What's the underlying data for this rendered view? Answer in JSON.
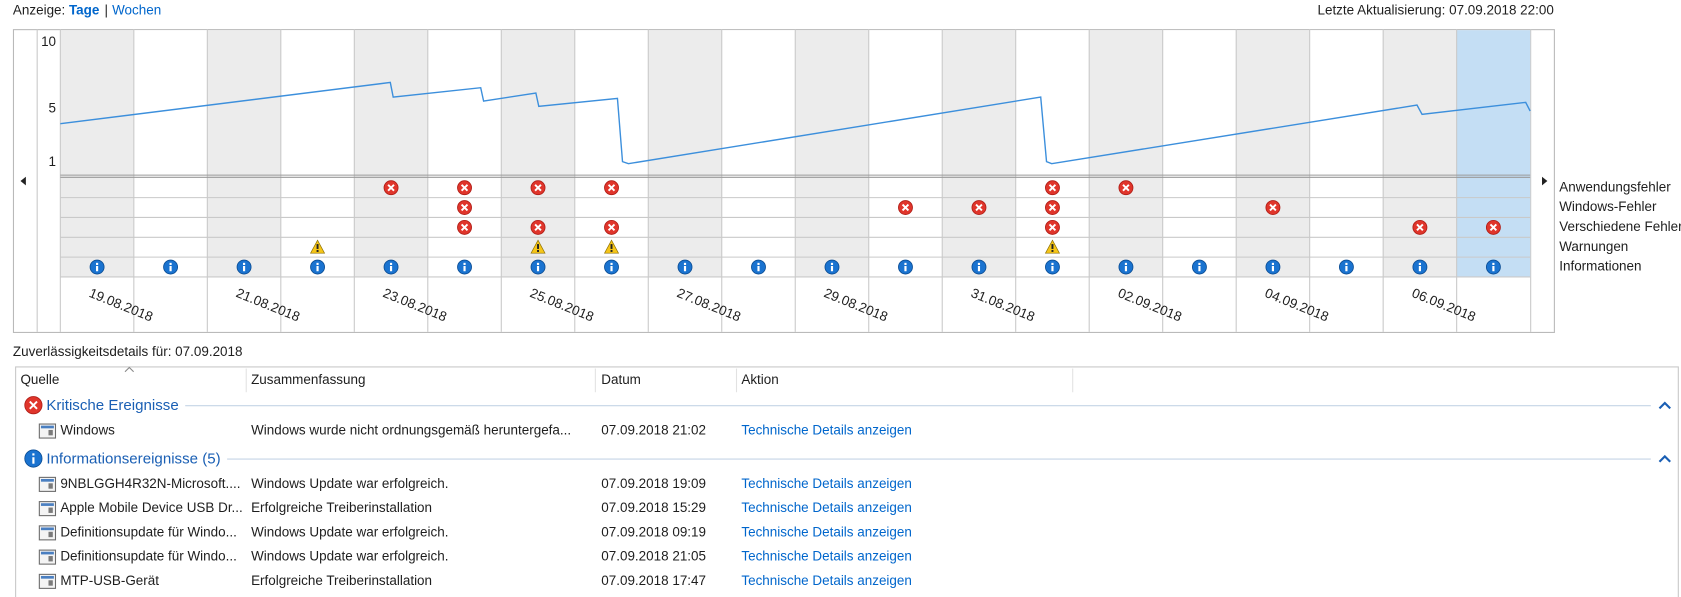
{
  "header": {
    "view_label": "Anzeige:",
    "view_days": "Tage",
    "separator": "|",
    "view_weeks": "Wochen",
    "last_update": "Letzte Aktualisierung: 07.09.2018 22:00"
  },
  "chart_data": {
    "type": "line",
    "categories": [
      "19.08.2018",
      null,
      "21.08.2018",
      null,
      "23.08.2018",
      null,
      "25.08.2018",
      null,
      "27.08.2018",
      null,
      "29.08.2018",
      null,
      "31.08.2018",
      null,
      "02.09.2018",
      null,
      "04.09.2018",
      null,
      "06.09.2018",
      null
    ],
    "selected_index": 19,
    "x": [
      0,
      4.49,
      4.53,
      5.72,
      5.76,
      6.47,
      6.51,
      7.58,
      7.65,
      7.73,
      13.34,
      13.42,
      13.49,
      18.46,
      18.53,
      19.94,
      20
    ],
    "values": [
      3.9,
      7.0,
      5.9,
      6.6,
      5.6,
      6.2,
      5.2,
      5.8,
      1.05,
      0.9,
      5.9,
      1.05,
      0.9,
      5.3,
      4.6,
      5.5,
      4.85
    ],
    "color": "#3c8fdc",
    "xlim": [
      0,
      20
    ],
    "ylim": [
      0,
      11
    ],
    "yticks": [
      1,
      5,
      10
    ],
    "events": [
      {
        "name": "Anwendungsfehler",
        "kind": "error",
        "columns": [
          4,
          5,
          6,
          7,
          13,
          14
        ]
      },
      {
        "name": "Windows-Fehler",
        "kind": "error",
        "columns": [
          5,
          11,
          12,
          13,
          16
        ]
      },
      {
        "name": "Verschiedene Fehler",
        "kind": "error",
        "columns": [
          5,
          6,
          7,
          13,
          18,
          19
        ]
      },
      {
        "name": "Warnungen",
        "kind": "warning",
        "columns": [
          3,
          6,
          7,
          13
        ]
      },
      {
        "name": "Informationen",
        "kind": "info",
        "columns": [
          0,
          1,
          2,
          3,
          4,
          5,
          6,
          7,
          8,
          9,
          10,
          11,
          12,
          13,
          14,
          15,
          16,
          17,
          18,
          19
        ]
      }
    ]
  },
  "details": {
    "title": "Zuverlässigkeitsdetails für: 07.09.2018"
  },
  "table": {
    "columns": [
      "Quelle",
      "Zusammenfassung",
      "Datum",
      "Aktion"
    ],
    "groups": [
      {
        "title": "Kritische Ereignisse",
        "kind": "error",
        "rows": [
          {
            "source": "Windows",
            "summary": "Windows wurde nicht ordnungsgemäß heruntergefa...",
            "date": "07.09.2018 21:02",
            "action": "Technische Details anzeigen"
          }
        ]
      },
      {
        "title": "Informationsereignisse (5)",
        "kind": "info",
        "rows": [
          {
            "source": "9NBLGGH4R32N-Microsoft....",
            "summary": "Windows Update war erfolgreich.",
            "date": "07.09.2018 19:09",
            "action": "Technische Details anzeigen"
          },
          {
            "source": "Apple Mobile Device USB Dr...",
            "summary": "Erfolgreiche Treiberinstallation",
            "date": "07.09.2018 15:29",
            "action": "Technische Details anzeigen"
          },
          {
            "source": "Definitionsupdate für Windo...",
            "summary": "Windows Update war erfolgreich.",
            "date": "07.09.2018 09:19",
            "action": "Technische Details anzeigen"
          },
          {
            "source": "Definitionsupdate für Windo...",
            "summary": "Windows Update war erfolgreich.",
            "date": "07.09.2018 21:05",
            "action": "Technische Details anzeigen"
          },
          {
            "source": "MTP-USB-Gerät",
            "summary": "Erfolgreiche Treiberinstallation",
            "date": "07.09.2018 17:47",
            "action": "Technische Details anzeigen"
          }
        ]
      }
    ]
  }
}
